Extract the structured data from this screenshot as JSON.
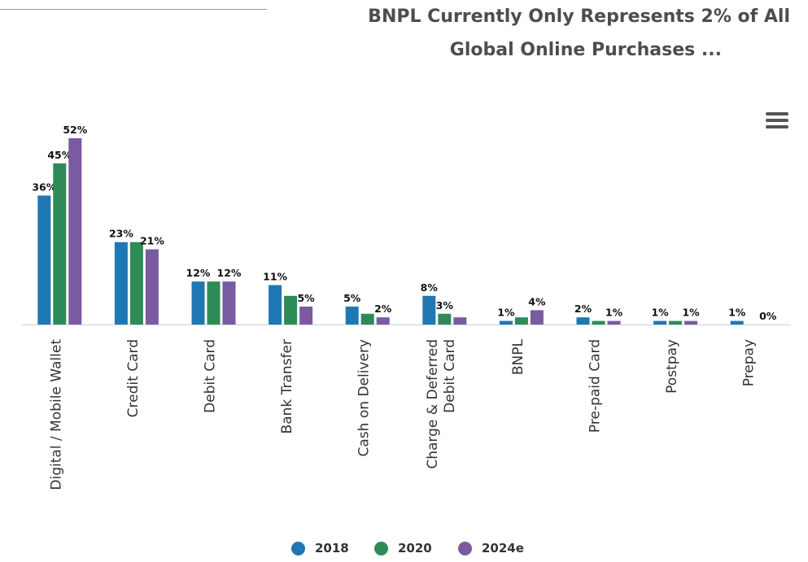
{
  "chart": {
    "title_line1": "BNPL Currently Only Represents 2% of All",
    "title_line2": "Global Online Purchases ..."
  },
  "colors": {
    "2018": "#1f77b4",
    "2020": "#2e8b57",
    "2024e": "#7a5aa0"
  },
  "icons": {
    "menu": "hamburger-menu-icon"
  },
  "chart_data": {
    "type": "bar",
    "title": "BNPL Currently Only Represents 2% of All Global Online Purchases ...",
    "categories": [
      [
        "Digital / Mobile Wallet"
      ],
      [
        "Credit Card"
      ],
      [
        "Debit Card"
      ],
      [
        "Bank Transfer"
      ],
      [
        "Cash on Delivery"
      ],
      [
        "Charge & Deferred",
        "Debit Card"
      ],
      [
        "BNPL"
      ],
      [
        "Pre-paid Card"
      ],
      [
        "Postpay"
      ],
      [
        "Prepay"
      ]
    ],
    "series": [
      {
        "name": "2018",
        "values": [
          36,
          23,
          12,
          11,
          5,
          8,
          1,
          2,
          1,
          1
        ]
      },
      {
        "name": "2020",
        "values": [
          45,
          23,
          12,
          8,
          3,
          3,
          2,
          1,
          1,
          0
        ]
      },
      {
        "name": "2024e",
        "values": [
          52,
          21,
          12,
          5,
          2,
          2,
          4,
          1,
          1,
          0
        ]
      }
    ],
    "data_labels": [
      [
        "36%",
        "45%",
        "52%"
      ],
      [
        "23%",
        "",
        "21%"
      ],
      [
        "12%",
        "",
        "12%"
      ],
      [
        "11%",
        "",
        "5%"
      ],
      [
        "5%",
        "",
        "2%"
      ],
      [
        "8%",
        "3%",
        ""
      ],
      [
        "1%",
        "",
        "4%"
      ],
      [
        "2%",
        "",
        "1%"
      ],
      [
        "1%",
        "",
        "1%"
      ],
      [
        "1%",
        "",
        "0%"
      ]
    ],
    "ylim": [
      0,
      52
    ],
    "grid": false,
    "legend": "bottom-center",
    "units": "%"
  }
}
